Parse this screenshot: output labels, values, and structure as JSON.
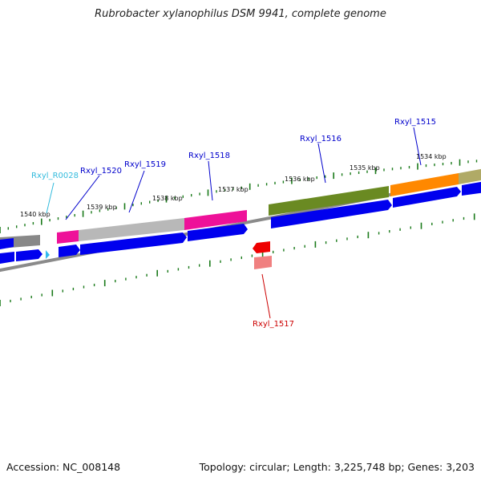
{
  "title": "Rubrobacter xylanophilus DSM 9941, complete genome",
  "footer": {
    "accession": "Accession: NC_008148",
    "summary": "Topology: circular; Length: 3,225,748 bp; Genes: 3,203"
  },
  "colors": {
    "gene_label": "#0000cc",
    "rrna_label": "#33bbdd",
    "reverse_label": "#cc0000",
    "tick": "#1a7a1a",
    "backbone": "#777777",
    "cds": "#0000ee"
  },
  "scale_labels": [
    "1540 kbp",
    "1539 kbp",
    "1538 kbp",
    "1537 kbp",
    "1536 kbp",
    "1535 kbp",
    "1534 kbp"
  ],
  "genes": [
    {
      "id": "Rxyl_R0028",
      "type": "rRNA",
      "strand": "+"
    },
    {
      "id": "Rxyl_1520",
      "type": "CDS",
      "strand": "+"
    },
    {
      "id": "Rxyl_1519",
      "type": "CDS",
      "strand": "+"
    },
    {
      "id": "Rxyl_1518",
      "type": "CDS",
      "strand": "+"
    },
    {
      "id": "Rxyl_1517",
      "type": "CDS",
      "strand": "-"
    },
    {
      "id": "Rxyl_1516",
      "type": "CDS",
      "strand": "+"
    },
    {
      "id": "Rxyl_1515",
      "type": "CDS",
      "strand": "+"
    }
  ]
}
